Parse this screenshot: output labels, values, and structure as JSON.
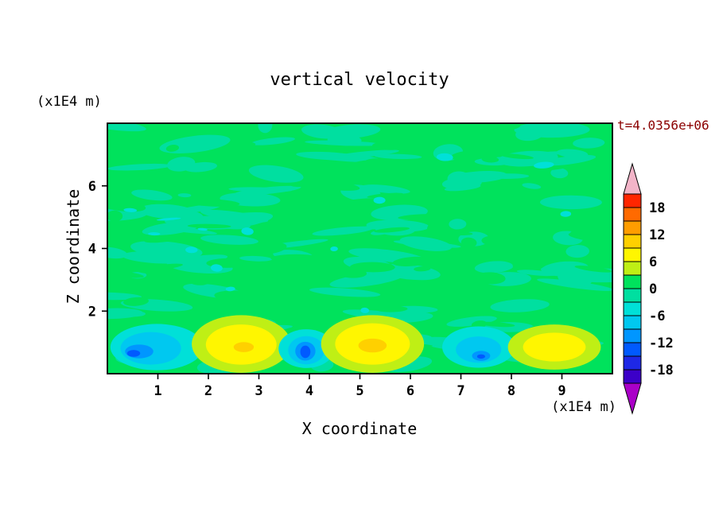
{
  "chart_data": {
    "type": "filled_contour",
    "title": "vertical velocity",
    "xlabel": "X coordinate",
    "ylabel": "Z coordinate",
    "x_unit": "(x1E4 m)",
    "z_unit": "(x1E4 m)",
    "time_annotation": "t=4.0356e+06",
    "time_annotation_color": "#8b0000",
    "x_range": [
      0,
      10
    ],
    "z_range": [
      0,
      8
    ],
    "x_ticks": [
      1,
      2,
      3,
      4,
      5,
      6,
      7,
      8,
      9
    ],
    "z_ticks": [
      2,
      4,
      6
    ],
    "contour_interval": 3,
    "colorbar": {
      "orientation": "vertical",
      "min": -21,
      "max": 21,
      "band_step": 3,
      "tick_values": [
        18,
        12,
        6,
        0,
        -6,
        -12,
        -18
      ],
      "tick_labels": [
        "18",
        "12",
        "6",
        "0",
        "-6",
        "-12",
        "-18"
      ],
      "bands_high_to_low": [
        {
          "v_hi": 21,
          "v_lo": 18,
          "color": "#ff2600"
        },
        {
          "v_hi": 18,
          "v_lo": 15,
          "color": "#ff6a00"
        },
        {
          "v_hi": 15,
          "v_lo": 12,
          "color": "#ff9d00"
        },
        {
          "v_hi": 12,
          "v_lo": 9,
          "color": "#ffd000"
        },
        {
          "v_hi": 9,
          "v_lo": 6,
          "color": "#fff600"
        },
        {
          "v_hi": 6,
          "v_lo": 3,
          "color": "#bfef15"
        },
        {
          "v_hi": 3,
          "v_lo": 0,
          "color": "#00e25c"
        },
        {
          "v_hi": 0,
          "v_lo": -3,
          "color": "#00dfa0"
        },
        {
          "v_hi": -3,
          "v_lo": -6,
          "color": "#00e0d8"
        },
        {
          "v_hi": -6,
          "v_lo": -9,
          "color": "#00c8f0"
        },
        {
          "v_hi": -9,
          "v_lo": -12,
          "color": "#0096ff"
        },
        {
          "v_hi": -12,
          "v_lo": -15,
          "color": "#005aff"
        },
        {
          "v_hi": -15,
          "v_lo": -18,
          "color": "#1e28e6"
        },
        {
          "v_hi": -18,
          "v_lo": -21,
          "color": "#3c00c8"
        }
      ],
      "above_max_arrow_color": "#f2b4c8",
      "below_min_arrow_color": "#aa00c8"
    },
    "background": {
      "base_color": "#00e25c",
      "mottle_color": "#00dfa0",
      "description": "Weak near-zero vertical velocity with mottled turbulent texture over most of the domain; alternating updraft/downdraft cells near the lower boundary"
    },
    "features": [
      {
        "kind": "downdraft-min",
        "x": 0.98,
        "z": 0.85,
        "contours": [
          {
            "color": "#00e0d8",
            "rx": 0.92,
            "rz": 0.74,
            "dx": 0,
            "dz": 0
          },
          {
            "color": "#00c8f0",
            "rx": 0.6,
            "rz": 0.52,
            "dx": -0.12,
            "dz": -0.04
          },
          {
            "color": "#0096ff",
            "rx": 0.28,
            "rz": 0.22,
            "dx": -0.35,
            "dz": -0.14
          },
          {
            "color": "#005aff",
            "rx": 0.13,
            "rz": 0.11,
            "dx": -0.46,
            "dz": -0.2
          }
        ]
      },
      {
        "kind": "updraft-max",
        "x": 2.65,
        "z": 0.95,
        "contours": [
          {
            "color": "#bfef15",
            "rx": 0.98,
            "rz": 0.92,
            "dx": 0,
            "dz": 0
          },
          {
            "color": "#fff600",
            "rx": 0.7,
            "rz": 0.64,
            "dx": 0,
            "dz": -0.02
          },
          {
            "color": "#ffd000",
            "rx": 0.2,
            "rz": 0.16,
            "dx": 0.05,
            "dz": -0.1
          }
        ]
      },
      {
        "kind": "downdraft-min",
        "x": 3.94,
        "z": 0.8,
        "contours": [
          {
            "color": "#00e0d8",
            "rx": 0.55,
            "rz": 0.62,
            "dx": 0,
            "dz": 0
          },
          {
            "color": "#00c8f0",
            "rx": 0.36,
            "rz": 0.45,
            "dx": 0,
            "dz": -0.05
          },
          {
            "color": "#0096ff",
            "rx": 0.2,
            "rz": 0.3,
            "dx": -0.02,
            "dz": -0.08
          },
          {
            "color": "#005aff",
            "rx": 0.1,
            "rz": 0.2,
            "dx": -0.02,
            "dz": -0.1
          }
        ]
      },
      {
        "kind": "updraft-max",
        "x": 5.25,
        "z": 0.95,
        "contours": [
          {
            "color": "#bfef15",
            "rx": 1.02,
            "rz": 0.92,
            "dx": 0,
            "dz": 0
          },
          {
            "color": "#fff600",
            "rx": 0.74,
            "rz": 0.66,
            "dx": 0,
            "dz": 0
          },
          {
            "color": "#ffd000",
            "rx": 0.28,
            "rz": 0.22,
            "dx": 0,
            "dz": -0.05
          }
        ]
      },
      {
        "kind": "downdraft-min",
        "x": 7.35,
        "z": 0.85,
        "contours": [
          {
            "color": "#00e0d8",
            "rx": 0.72,
            "rz": 0.66,
            "dx": 0,
            "dz": 0
          },
          {
            "color": "#00c8f0",
            "rx": 0.45,
            "rz": 0.42,
            "dx": 0,
            "dz": -0.08
          },
          {
            "color": "#0096ff",
            "rx": 0.18,
            "rz": 0.16,
            "dx": 0.05,
            "dz": -0.28
          },
          {
            "color": "#005aff",
            "rx": 0.08,
            "rz": 0.07,
            "dx": 0.05,
            "dz": -0.3
          }
        ]
      },
      {
        "kind": "updraft-max",
        "x": 8.85,
        "z": 0.85,
        "contours": [
          {
            "color": "#bfef15",
            "rx": 0.92,
            "rz": 0.72,
            "dx": 0,
            "dz": 0
          },
          {
            "color": "#fff600",
            "rx": 0.62,
            "rz": 0.46,
            "dx": 0,
            "dz": 0
          }
        ]
      }
    ]
  }
}
